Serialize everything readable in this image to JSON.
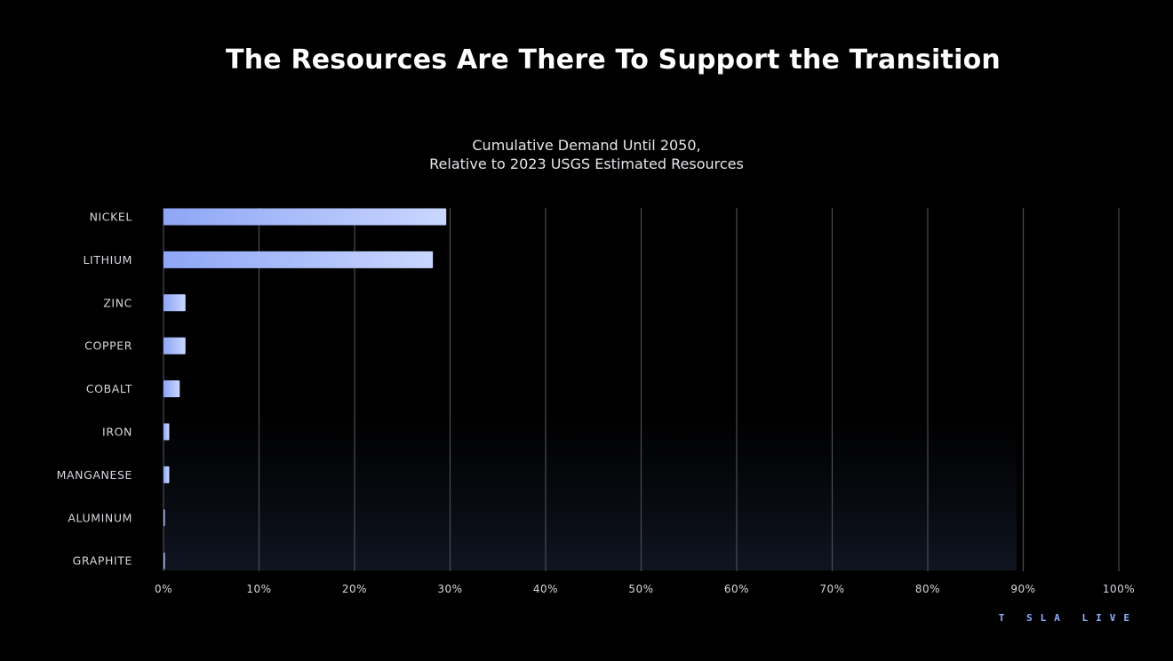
{
  "slide": {
    "title": "The Resources Are There To Support the Transition",
    "brand": "T SLA LIVE"
  },
  "chart_data": {
    "type": "bar",
    "orientation": "horizontal",
    "title": "Cumulative Demand Until 2050,",
    "subtitle": "Relative to 2023 USGS Estimated Resources",
    "categories": [
      "NICKEL",
      "LITHIUM",
      "ZINC",
      "COPPER",
      "COBALT",
      "IRON",
      "MANGANESE",
      "ALUMINUM",
      "GRAPHITE"
    ],
    "values": [
      29.6,
      28.2,
      2.3,
      2.3,
      1.7,
      0.6,
      0.6,
      0.1,
      0.1
    ],
    "unit": "%",
    "xlim": [
      0,
      100
    ],
    "xticks": [
      "0%",
      "10%",
      "20%",
      "30%",
      "40%",
      "50%",
      "60%",
      "70%",
      "80%",
      "90%",
      "100%"
    ],
    "xlabel": "",
    "ylabel": "",
    "grid": "vertical",
    "colors": {
      "bar_start": "#8ea6f5",
      "bar_end": "#c9d6ff",
      "grid": "#4a4d55",
      "label": "#d6d8de",
      "background": "#000000"
    }
  }
}
